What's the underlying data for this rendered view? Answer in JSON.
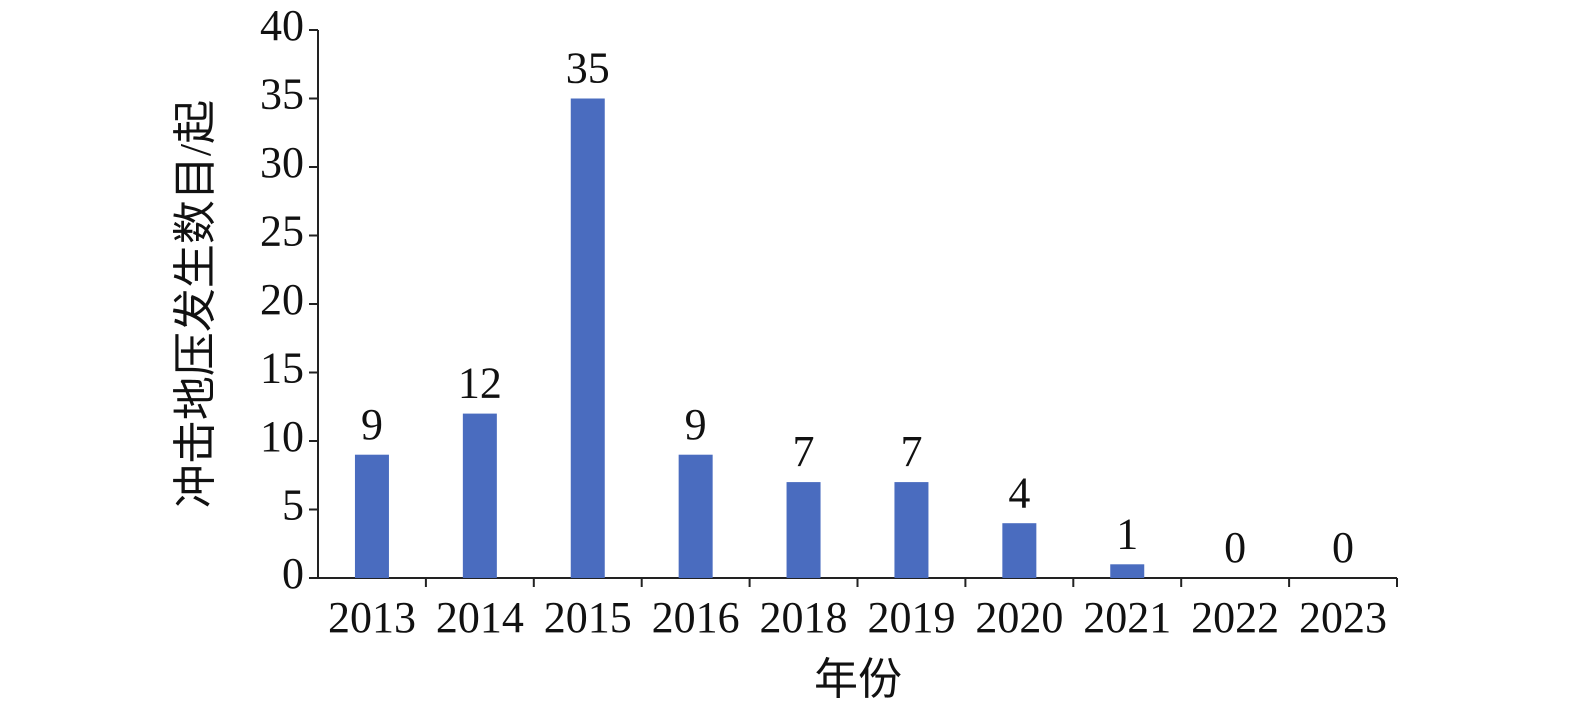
{
  "chart_data": {
    "type": "bar",
    "x_label": "年份",
    "y_label": "冲击地压发生数目/起",
    "categories": [
      "2013",
      "2014",
      "2015",
      "2016",
      "2018",
      "2019",
      "2020",
      "2021",
      "2022",
      "2023"
    ],
    "values": [
      9,
      12,
      35,
      9,
      7,
      7,
      4,
      1,
      0,
      0
    ],
    "color": "#4a6cbf",
    "ylim": [
      0,
      40
    ],
    "yticks": [
      0,
      5,
      10,
      15,
      20,
      25,
      30,
      35,
      40
    ]
  }
}
